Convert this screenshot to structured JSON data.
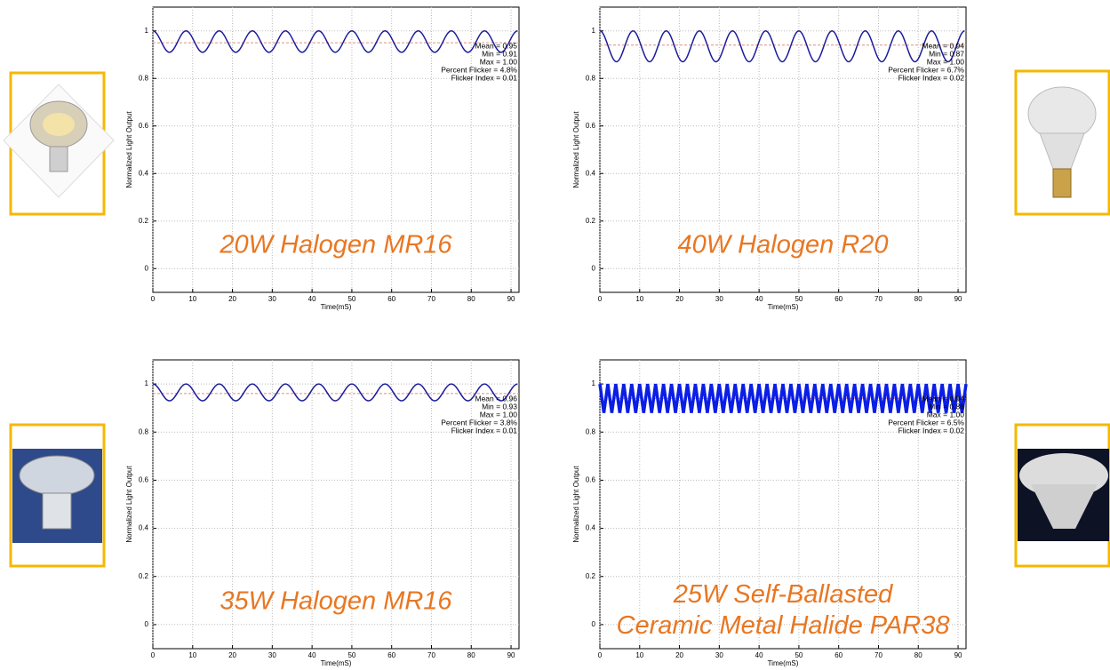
{
  "chart_data": [
    {
      "type": "line",
      "smooth": true,
      "caption": [
        "20W Halogen MR16"
      ],
      "xlabel": "Time(mS)",
      "ylabel": "Normalized Light Output",
      "stats": [
        "Mean = 0.95",
        "Min = 0.91",
        "Max = 1.00",
        "Percent Flicker = 4.8%",
        "Flicker Index = 0.01"
      ],
      "xlim": [
        0,
        92
      ],
      "xticks": [
        0,
        10,
        20,
        30,
        40,
        50,
        60,
        70,
        80,
        90
      ],
      "ylim": [
        -0.1,
        1.1
      ],
      "yticks": [
        0,
        0.2,
        0.4,
        0.6,
        0.8,
        1
      ],
      "grid": true,
      "mean_line": 0.95,
      "mean_color": "#e0907a",
      "x": [
        0,
        4.17,
        8.33,
        12.5,
        16.67,
        20.83,
        25,
        29.17,
        33.33,
        37.5,
        41.67,
        45.83,
        50,
        54.17,
        58.33,
        62.5,
        66.67,
        70.83,
        75,
        79.17,
        83.33,
        87.5,
        91.67
      ],
      "series": [
        {
          "color": "#1c1c9c",
          "values": [
            1,
            0.91,
            1,
            0.91,
            1,
            0.91,
            1,
            0.91,
            1,
            0.91,
            1,
            0.91,
            1,
            0.91,
            1,
            0.91,
            1,
            0.91,
            1,
            0.91,
            1,
            0.91,
            1
          ]
        }
      ]
    },
    {
      "type": "line",
      "smooth": true,
      "caption": [
        "40W Halogen R20"
      ],
      "xlabel": "Time(mS)",
      "ylabel": "Normalized Light Output",
      "stats": [
        "Mean = 0.94",
        "Min = 0.87",
        "Max = 1.00",
        "Percent Flicker = 6.7%",
        "Flicker Index = 0.02"
      ],
      "xlim": [
        0,
        92
      ],
      "xticks": [
        0,
        10,
        20,
        30,
        40,
        50,
        60,
        70,
        80,
        90
      ],
      "ylim": [
        -0.1,
        1.1
      ],
      "yticks": [
        0,
        0.2,
        0.4,
        0.6,
        0.8,
        1
      ],
      "grid": true,
      "mean_line": 0.94,
      "mean_color": "#e0907a",
      "x": [
        0,
        4.17,
        8.33,
        12.5,
        16.67,
        20.83,
        25,
        29.17,
        33.33,
        37.5,
        41.67,
        45.83,
        50,
        54.17,
        58.33,
        62.5,
        66.67,
        70.83,
        75,
        79.17,
        83.33,
        87.5,
        91.67
      ],
      "series": [
        {
          "color": "#1c1c9c",
          "values": [
            1,
            0.87,
            1,
            0.87,
            1,
            0.87,
            1,
            0.87,
            1,
            0.87,
            1,
            0.87,
            1,
            0.87,
            1,
            0.87,
            1,
            0.87,
            1,
            0.87,
            1,
            0.87,
            1
          ]
        }
      ]
    },
    {
      "type": "line",
      "smooth": true,
      "caption": [
        "35W Halogen MR16"
      ],
      "xlabel": "Time(mS)",
      "ylabel": "Normalized Light Output",
      "stats": [
        "Mean = 0.96",
        "Min = 0.93",
        "Max = 1.00",
        "Percent Flicker = 3.8%",
        "Flicker Index = 0.01"
      ],
      "xlim": [
        0,
        92
      ],
      "xticks": [
        0,
        10,
        20,
        30,
        40,
        50,
        60,
        70,
        80,
        90
      ],
      "ylim": [
        -0.1,
        1.1
      ],
      "yticks": [
        0,
        0.2,
        0.4,
        0.6,
        0.8,
        1
      ],
      "grid": true,
      "mean_line": 0.96,
      "mean_color": "#e0907a",
      "x": [
        0,
        4.17,
        8.33,
        12.5,
        16.67,
        20.83,
        25,
        29.17,
        33.33,
        37.5,
        41.67,
        45.83,
        50,
        54.17,
        58.33,
        62.5,
        66.67,
        70.83,
        75,
        79.17,
        83.33,
        87.5,
        91.67
      ],
      "series": [
        {
          "color": "#1c1c9c",
          "values": [
            1,
            0.93,
            1,
            0.93,
            1,
            0.93,
            1,
            0.93,
            1,
            0.93,
            1,
            0.93,
            1,
            0.93,
            1,
            0.93,
            1,
            0.93,
            1,
            0.93,
            1,
            0.93,
            1
          ]
        }
      ]
    },
    {
      "type": "line",
      "smooth": false,
      "caption": [
        "25W Self-Ballasted",
        "Ceramic Metal Halide PAR38"
      ],
      "xlabel": "Time(mS)",
      "ylabel": "Normalized Light Output",
      "stats": [
        "Mean = 0.94",
        "Min = 0.88",
        "Max = 1.00",
        "Percent Flicker = 6.5%",
        "Flicker Index = 0.02"
      ],
      "xlim": [
        0,
        92
      ],
      "xticks": [
        0,
        10,
        20,
        30,
        40,
        50,
        60,
        70,
        80,
        90
      ],
      "ylim": [
        -0.1,
        1.1
      ],
      "yticks": [
        0,
        0.2,
        0.4,
        0.6,
        0.8,
        1
      ],
      "grid": true,
      "mean_line": 0.94,
      "mean_color": "#e0907a",
      "x": [
        0,
        1,
        2,
        3,
        4,
        5,
        6,
        7,
        8,
        9,
        10,
        11,
        12,
        13,
        14,
        15,
        16,
        17,
        18,
        19,
        20,
        21,
        22,
        23,
        24,
        25,
        26,
        27,
        28,
        29,
        30,
        31,
        32,
        33,
        34,
        35,
        36,
        37,
        38,
        39,
        40,
        41,
        42,
        43,
        44,
        45,
        46,
        47,
        48,
        49,
        50,
        51,
        52,
        53,
        54,
        55,
        56,
        57,
        58,
        59,
        60,
        61,
        62,
        63,
        64,
        65,
        66,
        67,
        68,
        69,
        70,
        71,
        72,
        73,
        74,
        75,
        76,
        77,
        78,
        79,
        80,
        81,
        82,
        83,
        84,
        85,
        86,
        87,
        88,
        89,
        90,
        91,
        92
      ],
      "series": [
        {
          "color": "#0a1ee6",
          "values": [
            1,
            0.88,
            1,
            0.88,
            1,
            0.88,
            1,
            0.88,
            1,
            0.88,
            1,
            0.88,
            1,
            0.88,
            1,
            0.88,
            1,
            0.88,
            1,
            0.88,
            1,
            0.88,
            1,
            0.88,
            1,
            0.88,
            1,
            0.88,
            1,
            0.88,
            1,
            0.88,
            1,
            0.88,
            1,
            0.88,
            1,
            0.88,
            1,
            0.88,
            1,
            0.88,
            1,
            0.88,
            1,
            0.88,
            1,
            0.88,
            1,
            0.88,
            1,
            0.88,
            1,
            0.88,
            1,
            0.88,
            1,
            0.88,
            1,
            0.88,
            1,
            0.88,
            1,
            0.88,
            1,
            0.88,
            1,
            0.88,
            1,
            0.88,
            1,
            0.88,
            1,
            0.88,
            1,
            0.88,
            1,
            0.88,
            1,
            0.88,
            1,
            0.88,
            1,
            0.88,
            1,
            0.88,
            1,
            0.88,
            1,
            0.88,
            1,
            0.88,
            1
          ]
        }
      ]
    }
  ]
}
